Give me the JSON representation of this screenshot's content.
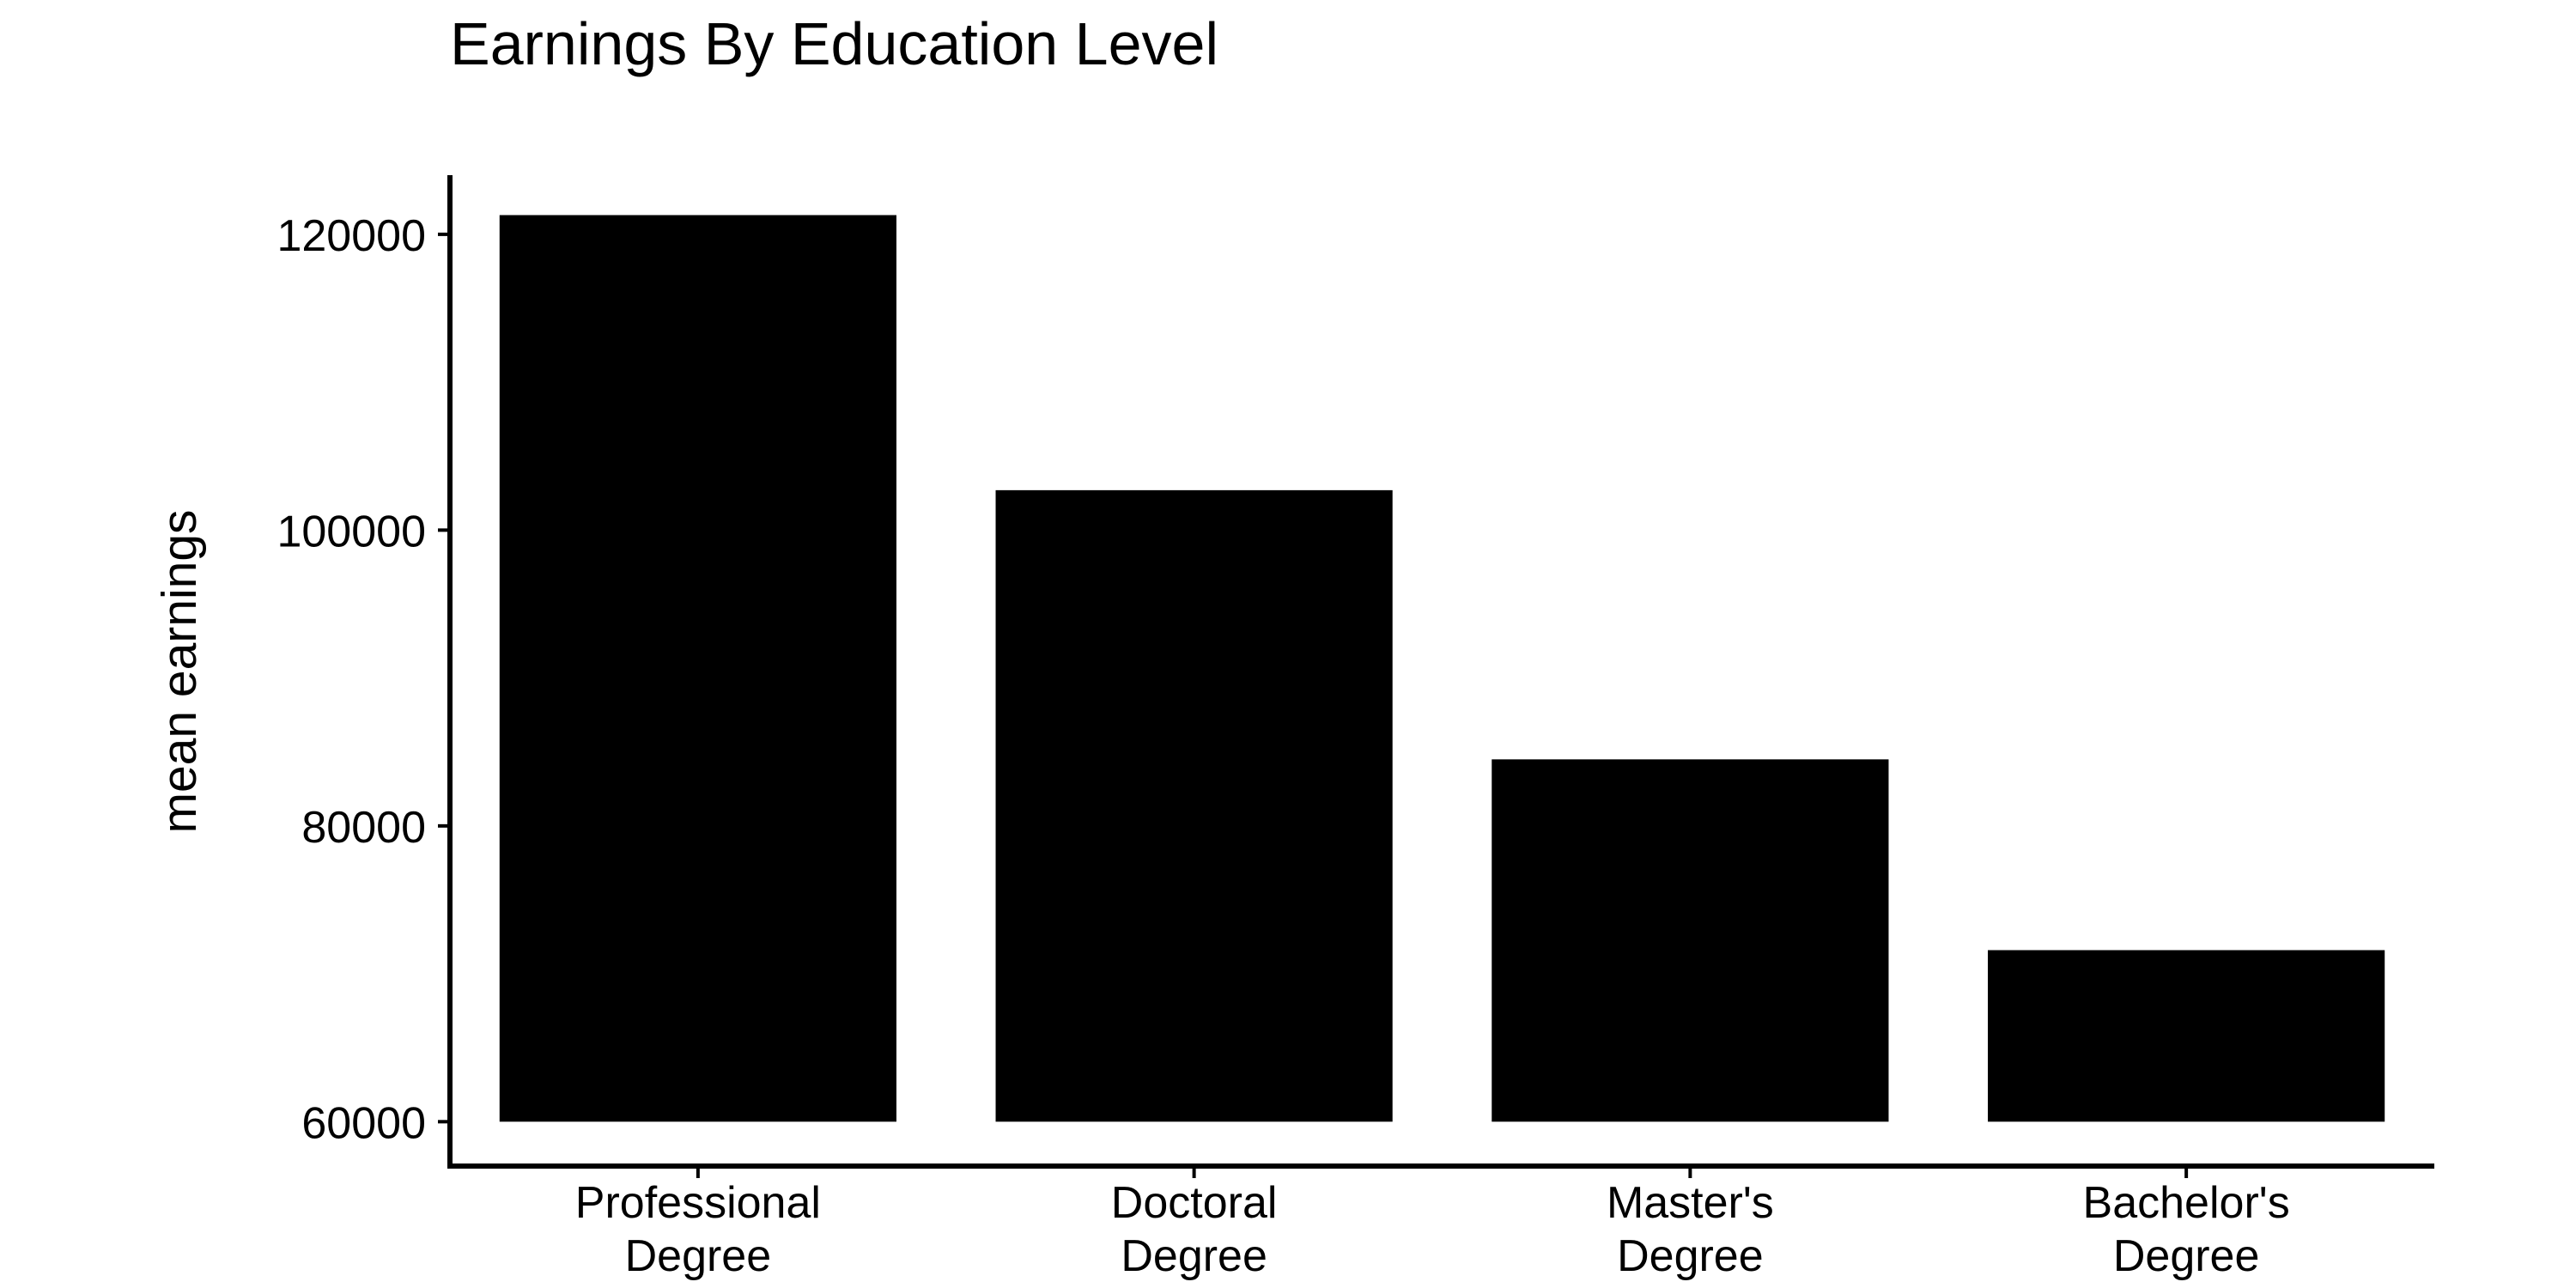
{
  "chart_data": {
    "type": "bar",
    "title": "Earnings By Education Level",
    "xlabel": "",
    "ylabel": "mean earnings",
    "categories": [
      [
        "Professional",
        "Degree"
      ],
      [
        "Doctoral",
        "Degree"
      ],
      [
        "Master's",
        "Degree"
      ],
      [
        "Bachelor's",
        "Degree"
      ]
    ],
    "values": [
      121300,
      102700,
      84500,
      71600
    ],
    "ylim": [
      57000,
      124000
    ],
    "baseline": 60000,
    "yticks": [
      60000,
      80000,
      100000,
      120000
    ],
    "ytick_labels": [
      "60000",
      "80000",
      "100000",
      "120000"
    ],
    "bar_color": "#000000",
    "grid": false,
    "legend": "none"
  }
}
